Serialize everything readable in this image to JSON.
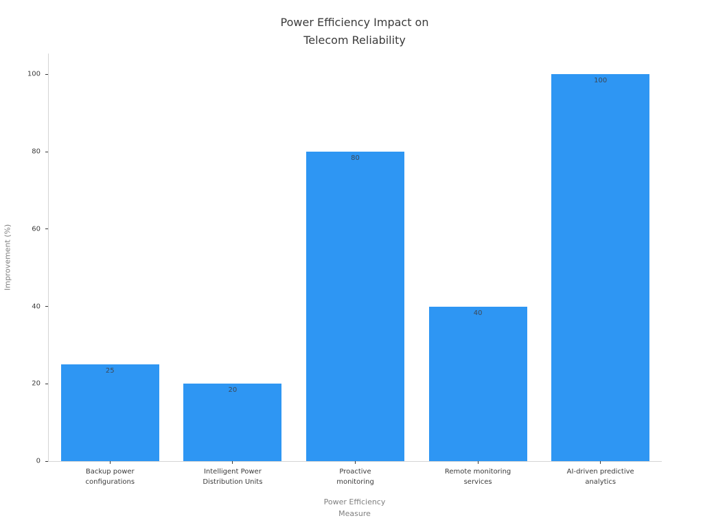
{
  "chart_data": {
    "type": "bar",
    "title": "Power Efficiency Impact on\nTelecom Reliability",
    "xlabel": "Power Efficiency\nMeasure",
    "ylabel": "Improvement (%)",
    "categories": [
      "Backup power\nconfigurations",
      "Intelligent Power\nDistribution Units",
      "Proactive\nmonitoring",
      "Remote monitoring\nservices",
      "AI-driven predictive\nanalytics"
    ],
    "values": [
      25,
      20,
      80,
      40,
      100
    ],
    "value_labels": [
      "25",
      "20",
      "80",
      "40",
      "100"
    ],
    "yticks": [
      0,
      20,
      40,
      60,
      80,
      100
    ],
    "ylim": [
      0,
      105.4
    ],
    "bar_width_frac": 0.8,
    "grid": false,
    "legend": false,
    "value_labels_inside_top": true,
    "colors": {
      "bar": "#2e96f3",
      "title_text": "#3a3a3a",
      "tick_text": "#3a3a3a",
      "axis_label_text": "#7f7f7f",
      "bar_value_text": "#3d4856",
      "spine": "#d4d4d4",
      "tick_mark": "#333333",
      "background": "#ffffff"
    }
  }
}
